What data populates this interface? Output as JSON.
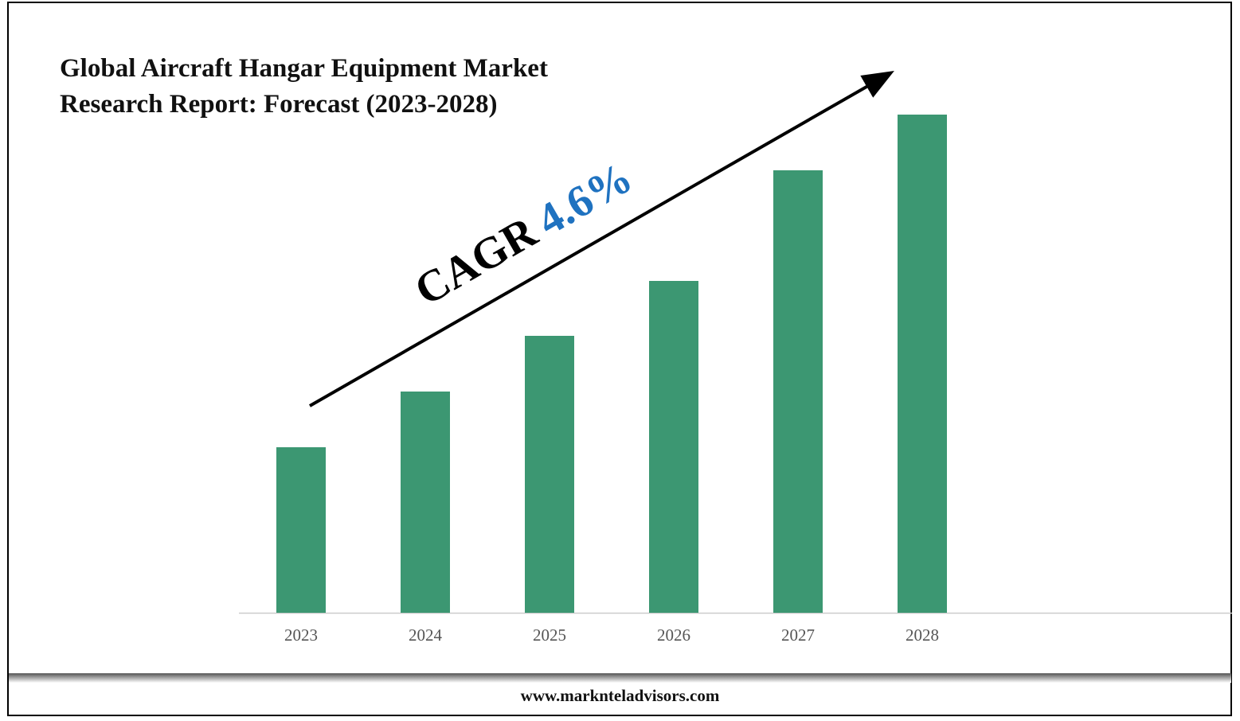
{
  "chart_data": {
    "type": "bar",
    "title": "Global Aircraft Hangar Equipment Market Research Report: Forecast (2023-2028)",
    "categories": [
      "2023",
      "2024",
      "2025",
      "2026",
      "2027",
      "2028"
    ],
    "values": [
      208,
      278,
      348,
      417,
      556,
      626
    ],
    "value_note": "relative bar heights, no axis scale shown",
    "ylim": [
      0,
      700
    ],
    "xlabel": "",
    "ylabel": "",
    "annotation": {
      "prefix": "CAGR",
      "value": "4.6%"
    },
    "colors": {
      "bar": "#3c9772",
      "cagr_value": "#1f72c0"
    }
  },
  "footer": "www.marknteladvisors.com"
}
